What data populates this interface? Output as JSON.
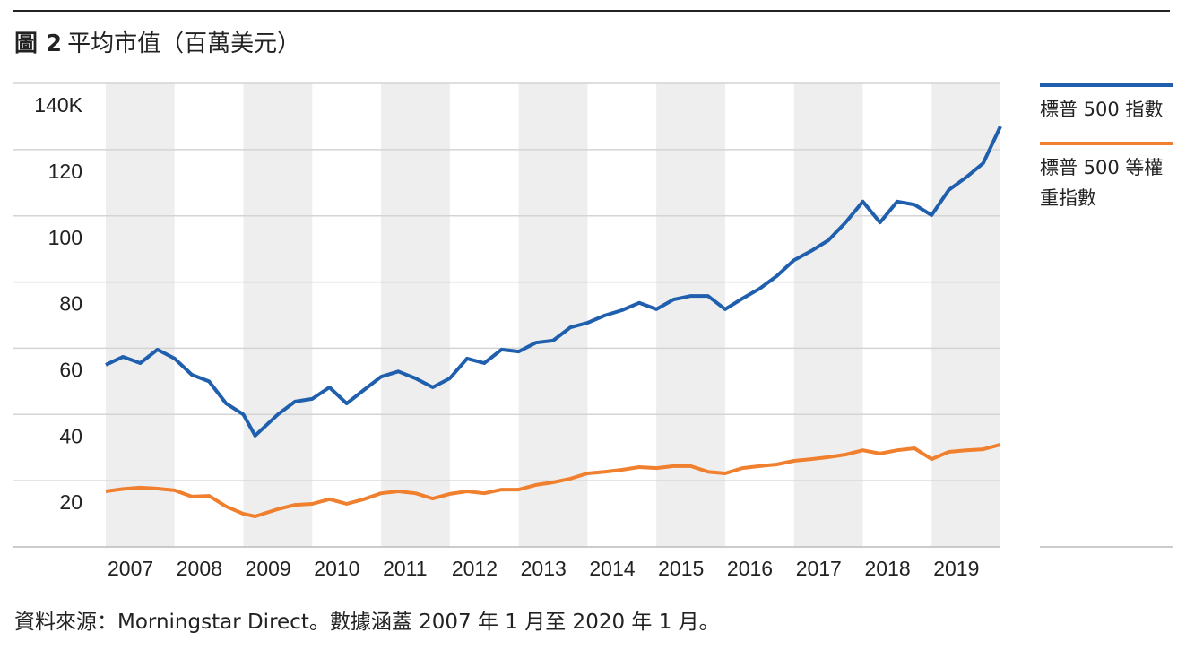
{
  "chart_data": {
    "type": "line",
    "title_label": "圖 2",
    "title": "平均市值（百萬美元）",
    "source": "資料來源：Morningstar Direct。數據涵蓋 2007 年 1 月至 2020 年 1 月。",
    "x": [
      2007,
      2007.25,
      2007.5,
      2007.75,
      2008,
      2008.25,
      2008.5,
      2008.75,
      2009,
      2009.17,
      2009.5,
      2009.75,
      2010,
      2010.25,
      2010.5,
      2010.75,
      2011,
      2011.25,
      2011.5,
      2011.75,
      2012,
      2012.25,
      2012.5,
      2012.75,
      2013,
      2013.25,
      2013.5,
      2013.75,
      2014,
      2014.25,
      2014.5,
      2014.75,
      2015,
      2015.25,
      2015.5,
      2015.75,
      2016,
      2016.25,
      2016.5,
      2016.75,
      2017,
      2017.25,
      2017.5,
      2017.75,
      2018,
      2018.25,
      2018.5,
      2018.75,
      2019,
      2019.25,
      2019.5,
      2019.75,
      2020
    ],
    "xlim": [
      2007,
      2020
    ],
    "xticks": [
      2007,
      2008,
      2009,
      2010,
      2011,
      2012,
      2013,
      2014,
      2015,
      2016,
      2017,
      2018,
      2019
    ],
    "ylim": [
      0,
      140
    ],
    "yticks": [
      20,
      40,
      60,
      80,
      100,
      120,
      {
        "value": 140,
        "label": "140K"
      }
    ],
    "grid": true,
    "shaded_years": true,
    "series": [
      {
        "name": "標普 500 指數",
        "color": "#1f5fad",
        "values": [
          55,
          57.4,
          55.5,
          59.6,
          56.9,
          52,
          50,
          43.3,
          40,
          33.6,
          40,
          43.9,
          44.7,
          48.2,
          43.3,
          47.4,
          51.4,
          53,
          50.9,
          48.2,
          50.9,
          56.9,
          55.5,
          59.6,
          59,
          61.7,
          62.3,
          66.3,
          67.7,
          69.9,
          71.5,
          73.7,
          71.8,
          74.7,
          75.8,
          75.8,
          71.8,
          75,
          78,
          81.8,
          86.6,
          89.4,
          92.6,
          98,
          104.3,
          98,
          104.3,
          103.4,
          100.2,
          107.8,
          111.6,
          115.9,
          127
        ]
      },
      {
        "name": "標普 500 等權重指數",
        "color": "#f07f2e",
        "values": [
          16.8,
          17.5,
          17.9,
          17.6,
          17.1,
          15.2,
          15.4,
          12.2,
          10,
          9.2,
          11.4,
          12.7,
          13,
          14.4,
          13,
          14.4,
          16.2,
          16.8,
          16.2,
          14.6,
          16,
          16.8,
          16.2,
          17.3,
          17.3,
          18.7,
          19.5,
          20.6,
          22.2,
          22.7,
          23.3,
          24.1,
          23.8,
          24.4,
          24.4,
          22.7,
          22.2,
          23.8,
          24.4,
          24.9,
          26,
          26.5,
          27.1,
          27.9,
          29.2,
          28.2,
          29.2,
          29.8,
          26.5,
          28.7,
          29.2,
          29.5,
          30.9
        ]
      }
    ]
  }
}
